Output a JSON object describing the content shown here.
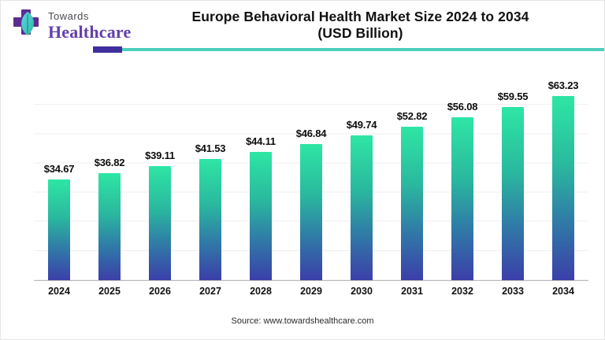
{
  "header": {
    "brand_top": "Towards",
    "brand_bottom": "Healthcare",
    "title_line1": "Europe Behavioral Health Market Size 2024 to 2034",
    "title_line2": "(USD Billion)"
  },
  "chart_data": {
    "type": "bar",
    "title": "Europe Behavioral Health Market Size 2024 to 2034 (USD Billion)",
    "categories": [
      "2024",
      "2025",
      "2026",
      "2027",
      "2028",
      "2029",
      "2030",
      "2031",
      "2032",
      "2033",
      "2034"
    ],
    "values": [
      34.67,
      36.82,
      39.11,
      41.53,
      44.11,
      46.84,
      49.74,
      52.82,
      56.08,
      59.55,
      63.23
    ],
    "value_labels": [
      "$34.67",
      "$36.82",
      "$39.11",
      "$41.53",
      "$44.11",
      "$46.84",
      "$49.74",
      "$52.82",
      "$56.08",
      "$59.55",
      "$63.23"
    ],
    "xlabel": "",
    "ylabel": "",
    "ylim": [
      0,
      70
    ],
    "grid": true,
    "gridline_step": 10,
    "legend": "none",
    "bar_gradient_top": "#2ee6a4",
    "bar_gradient_bottom": "#3b3fa9"
  },
  "footer": {
    "source": "Source: www.towardshealthcare.com"
  },
  "colors": {
    "brand_purple": "#6340ab",
    "logo_cross_purple": "#5c2d91",
    "logo_leaf_teal": "#3fc3cf",
    "divider_purple": "#3f2f9e",
    "divider_teal": "#4ccfbc",
    "title_text": "#111111",
    "axis_line": "#b9b9b9"
  }
}
